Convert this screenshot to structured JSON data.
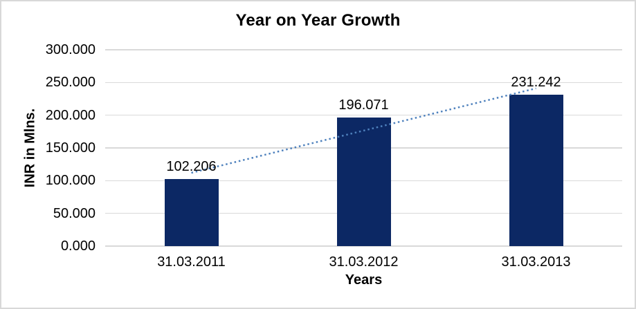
{
  "chart_data": {
    "type": "bar",
    "title": "Year on Year Growth",
    "xlabel": "Years",
    "ylabel": "INR in Mlns.",
    "categories": [
      "31.03.2011",
      "31.03.2012",
      "31.03.2013"
    ],
    "values": [
      102.206,
      196.071,
      231.242
    ],
    "data_labels": [
      "102.206",
      "196.071",
      "231.242"
    ],
    "series_name": "INR in Mlns.",
    "ylim": [
      0,
      300
    ],
    "ytick_values": [
      0,
      50,
      100,
      150,
      200,
      250,
      300
    ],
    "ytick_labels": [
      "0.000",
      "50.000",
      "100.000",
      "150.000",
      "200.000",
      "250.000",
      "300.000"
    ],
    "grid": true,
    "legend": false,
    "bar_color": "#0c2864",
    "gridline_color": "#d9d9d9",
    "text_color": "#000000",
    "border_color": "#d8d8d8",
    "trendline": {
      "type": "linear",
      "style": "dotted",
      "color": "#4e81bd"
    }
  }
}
